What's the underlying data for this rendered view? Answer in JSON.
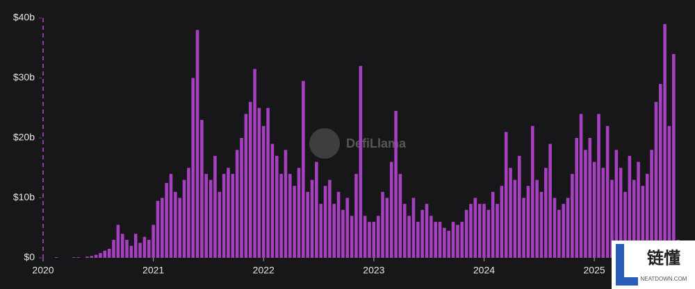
{
  "chart_data": {
    "type": "bar",
    "watermark": "DefiLlama",
    "x": [
      2020,
      2020.04,
      2020.08,
      2020.12,
      2020.16,
      2020.2,
      2020.24,
      2020.28,
      2020.32,
      2020.36,
      2020.4,
      2020.44,
      2020.48,
      2020.52,
      2020.56,
      2020.6,
      2020.64,
      2020.68,
      2020.72,
      2020.76,
      2020.8,
      2020.84,
      2020.88,
      2020.92,
      2020.96,
      2021,
      2021.04,
      2021.08,
      2021.12,
      2021.16,
      2021.2,
      2021.24,
      2021.28,
      2021.32,
      2021.36,
      2021.4,
      2021.44,
      2021.48,
      2021.52,
      2021.56,
      2021.6,
      2021.64,
      2021.68,
      2021.72,
      2021.76,
      2021.8,
      2021.84,
      2021.88,
      2021.92,
      2021.96,
      2022,
      2022.04,
      2022.08,
      2022.12,
      2022.16,
      2022.2,
      2022.24,
      2022.28,
      2022.32,
      2022.36,
      2022.4,
      2022.44,
      2022.48,
      2022.52,
      2022.56,
      2022.6,
      2022.64,
      2022.68,
      2022.72,
      2022.76,
      2022.8,
      2022.84,
      2022.88,
      2022.92,
      2022.96,
      2023,
      2023.04,
      2023.08,
      2023.12,
      2023.16,
      2023.2,
      2023.24,
      2023.28,
      2023.32,
      2023.36,
      2023.4,
      2023.44,
      2023.48,
      2023.52,
      2023.56,
      2023.6,
      2023.64,
      2023.68,
      2023.72,
      2023.76,
      2023.8,
      2023.84,
      2023.88,
      2023.92,
      2023.96,
      2024,
      2024.04,
      2024.08,
      2024.12,
      2024.16,
      2024.2,
      2024.24,
      2024.28,
      2024.32,
      2024.36,
      2024.4,
      2024.44,
      2024.48,
      2024.52,
      2024.56,
      2024.6,
      2024.64,
      2024.68,
      2024.72,
      2024.76,
      2024.8,
      2024.84,
      2024.88,
      2024.92,
      2024.96,
      2025,
      2025.04,
      2025.08,
      2025.12,
      2025.16,
      2025.2,
      2025.24,
      2025.28,
      2025.32,
      2025.36,
      2025.4,
      2025.44,
      2025.48,
      2025.52,
      2025.56,
      2025.6,
      2025.64,
      2025.68,
      2025.72,
      2025.76
    ],
    "values": [
      0,
      0,
      0,
      0.1,
      0,
      0,
      0,
      0.1,
      0.1,
      0,
      0.2,
      0.3,
      0.5,
      0.8,
      1.2,
      1.5,
      3,
      5.5,
      4,
      3,
      2,
      4,
      2.5,
      3.5,
      3,
      5.5,
      9.5,
      10,
      12.5,
      14,
      11,
      10,
      13,
      15,
      30,
      38,
      23,
      14,
      13,
      17,
      11,
      14,
      15,
      14,
      18,
      20,
      24,
      26,
      31.5,
      25,
      22,
      25,
      19,
      17,
      14,
      18,
      14,
      12,
      15,
      29.5,
      11,
      13,
      16,
      9,
      12,
      13,
      9,
      11,
      8,
      10,
      7,
      14,
      32,
      7,
      6,
      6,
      7,
      11,
      10,
      16,
      24.5,
      14,
      9,
      7,
      10,
      6,
      8,
      9,
      7,
      6,
      6,
      5,
      4.5,
      6,
      5.5,
      6,
      8,
      9,
      10,
      9,
      9,
      8,
      11,
      9,
      12,
      21,
      15,
      13,
      17,
      10,
      12,
      22,
      13,
      11,
      15,
      19,
      10,
      8,
      9,
      10,
      14,
      20,
      24,
      18,
      20,
      16,
      24,
      15,
      22,
      13,
      18,
      15,
      11,
      17,
      13,
      16,
      12,
      14,
      18,
      26,
      29,
      39,
      22,
      34,
      3
    ],
    "color": "#a640c0",
    "xlim": [
      2020,
      2025.8
    ],
    "xticks": [
      2020,
      2021,
      2022,
      2023,
      2024,
      2025
    ],
    "ylim": [
      0,
      40
    ],
    "yticks": [
      {
        "value": 0,
        "label": "$0"
      },
      {
        "value": 10,
        "label": "$10b"
      },
      {
        "value": 20,
        "label": "$20b"
      },
      {
        "value": 30,
        "label": "$30b"
      },
      {
        "value": 40,
        "label": "$40b"
      }
    ]
  },
  "overlay": {
    "title": "链懂",
    "subtitle": "NEATDOWN.COM"
  }
}
